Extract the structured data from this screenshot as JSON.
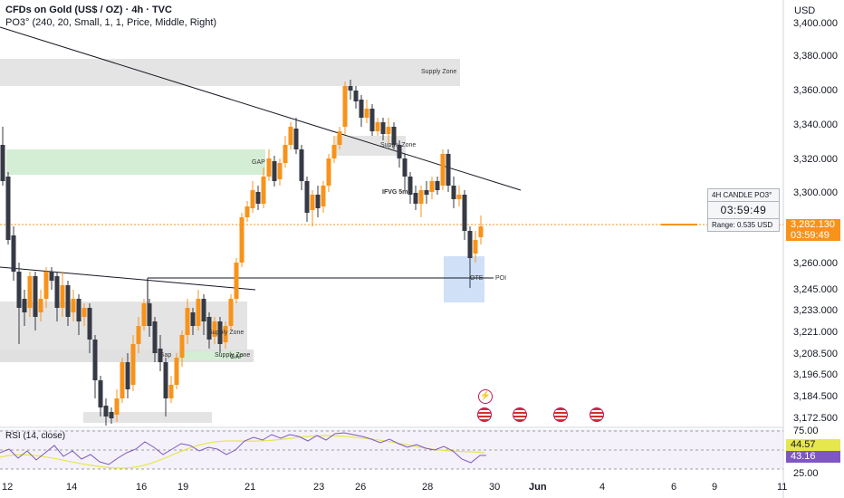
{
  "header": {
    "title": "CFDs on Gold (US$ / OZ) · 4h · TVC",
    "indicator": "PO3° (240, 20, Small, 1, 1, Price, Middle, Right)",
    "currency": "USD"
  },
  "yaxis": {
    "ticks": [
      "3,400.000",
      "3,380.000",
      "3,360.000",
      "3,340.000",
      "3,320.000",
      "3,300.000",
      "3,260.000",
      "3,245.000",
      "3,233.000",
      "3,221.000",
      "3,208.500",
      "3,196.500",
      "3,184.500",
      "3,172.500"
    ],
    "rsi_ticks": [
      "75.00",
      "25.00"
    ]
  },
  "xaxis": {
    "ticks": [
      "12",
      "14",
      "16",
      "19",
      "21",
      "23",
      "26",
      "28",
      "30",
      "Jun",
      "4",
      "6",
      "9",
      "11"
    ]
  },
  "price_tag": {
    "price": "3,282.130",
    "countdown": "03:59:49",
    "color": "#f7931a"
  },
  "rsi": {
    "label": "RSI (14, close)",
    "value1": "44.57",
    "value2": "43.16",
    "color1": "#f0ed5a",
    "color2": "#7e57c2"
  },
  "widget": {
    "title": "4H CANDLE PO3°",
    "timer": "03:59:49",
    "range": "Range: 0.535 USD"
  },
  "annotations": {
    "supply_top": "Supply Zone",
    "supply_mid": "Supply Zone",
    "gap_top": "GAP",
    "ifvg": "IFVG 5m",
    "supply_left": "Supply Zone",
    "supply_bottom": "Supply Zone",
    "gap_bottom": "GAP",
    "gap_left": "Gap",
    "ote": "OTE",
    "poi": "POI"
  },
  "colors": {
    "bull": "#f7931a",
    "bear": "#363a45",
    "supply": "#d9d9d9",
    "demand": "#c8e6c9",
    "poi_box": "#bbd3f5",
    "trend": "#131722"
  },
  "events": [
    "lightning-icon",
    "us-flag-icon",
    "us-flag-icon",
    "us-flag-icon",
    "us-flag-icon"
  ]
}
